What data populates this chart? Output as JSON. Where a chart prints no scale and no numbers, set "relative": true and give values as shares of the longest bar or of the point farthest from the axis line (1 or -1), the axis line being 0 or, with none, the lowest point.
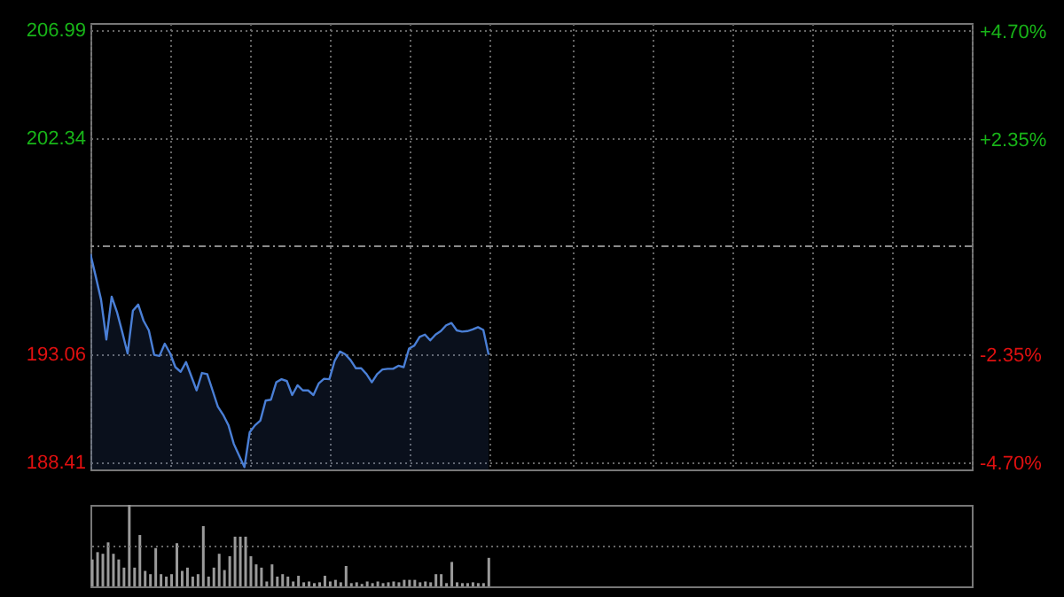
{
  "chart_data": [
    {
      "type": "area",
      "categories": [
        null,
        null,
        null,
        null,
        null,
        null,
        null,
        null,
        null,
        null,
        null,
        null,
        null,
        null,
        null,
        null,
        null,
        null,
        null,
        null,
        null,
        null,
        null,
        null,
        null,
        null,
        null,
        null,
        null,
        null,
        null,
        null,
        null,
        null,
        null,
        null,
        null,
        null,
        null,
        null,
        null,
        null,
        null,
        null,
        null,
        null,
        null,
        null,
        null,
        null,
        null,
        null,
        null,
        null,
        null,
        null,
        null,
        null,
        null,
        null,
        null,
        null,
        null,
        null,
        null,
        null,
        null,
        null,
        null,
        null,
        null,
        null,
        null,
        null,
        null,
        null,
        null,
        null,
        null,
        null,
        null,
        null,
        null,
        null,
        null,
        null,
        null,
        null,
        null,
        null,
        null,
        null,
        null,
        null,
        null,
        null,
        null,
        null,
        null,
        null,
        null,
        null,
        null,
        null,
        null,
        null,
        null,
        null,
        null,
        null,
        null,
        null,
        null,
        null,
        null,
        null,
        null,
        null,
        null,
        null,
        null,
        null,
        null,
        null,
        null,
        null,
        null,
        null,
        null,
        null,
        null,
        null,
        null,
        null,
        null,
        null,
        null,
        null,
        null,
        null,
        null,
        null,
        null,
        null,
        null,
        null,
        null,
        null,
        null,
        null,
        null,
        null,
        null,
        null,
        null,
        null,
        null,
        null,
        null,
        null,
        null,
        null,
        null,
        null,
        null,
        null,
        null
      ],
      "series": [
        {
          "color": "#4a7fd6",
          "values": [
            197.37,
            196.4,
            195.4,
            193.69,
            195.53,
            194.87,
            194.0,
            193.09,
            194.93,
            195.19,
            194.5,
            194.08,
            193.03,
            192.98,
            193.51,
            193.1,
            192.5,
            192.3,
            192.72,
            192.11,
            191.5,
            192.25,
            192.2,
            191.5,
            190.8,
            190.45,
            190.0,
            189.2,
            188.7,
            188.2,
            189.7,
            190.0,
            190.2,
            191.06,
            191.1,
            191.85,
            191.98,
            191.9,
            191.3,
            191.72,
            191.5,
            191.5,
            191.3,
            191.8,
            192.0,
            191.98,
            192.77,
            193.17,
            193.05,
            192.8,
            192.45,
            192.45,
            192.2,
            191.85,
            192.2,
            192.4,
            192.43,
            192.43,
            192.56,
            192.5,
            193.3,
            193.43,
            193.8,
            193.9,
            193.65,
            193.9,
            194.05,
            194.3,
            194.4,
            194.08,
            194.03,
            194.05,
            194.12,
            194.22,
            194.1,
            193.03,
            null,
            null,
            null,
            null,
            null,
            null,
            null,
            null,
            null,
            null,
            null,
            null,
            null,
            null,
            null,
            null,
            null,
            null,
            null,
            null,
            null,
            null,
            null,
            null,
            null,
            null,
            null,
            null,
            null,
            null,
            null,
            null,
            null,
            null,
            null,
            null,
            null,
            null,
            null,
            null,
            null,
            null,
            null,
            null,
            null,
            null,
            null,
            null,
            null,
            null,
            null,
            null,
            null,
            null,
            null,
            null,
            null,
            null,
            null,
            null,
            null,
            null,
            null,
            null,
            null,
            null,
            null,
            null,
            null,
            null,
            null,
            null,
            null,
            null,
            null,
            null,
            null,
            null,
            null,
            null,
            null,
            null,
            null,
            null,
            null,
            null,
            null,
            null,
            null,
            null,
            null
          ]
        }
      ],
      "ylim": [
        188.1,
        207.3
      ],
      "yticks": [
        188.41,
        193.06,
        202.34,
        206.99
      ],
      "y2lim": [
        -4.83,
        4.89
      ],
      "y2ticks": [
        {
          "value": -4.7,
          "label": "-4.70%"
        },
        {
          "value": -2.35,
          "label": "-2.35%"
        },
        {
          "value": 2.35,
          "label": "+2.35%"
        },
        {
          "value": 4.7,
          "label": "+4.70%"
        }
      ],
      "ref_lines": [
        {
          "axis": "y",
          "value": 197.7,
          "color": "#8a8a8a",
          "line_style": "dashed"
        }
      ],
      "grid": true
    },
    {
      "type": "bar",
      "relative": true,
      "color": "#9a9a9a",
      "ref_lines": [
        {
          "axis": "y",
          "value": 0.49,
          "color": "#666666",
          "line_style": "dotted"
        }
      ],
      "categories": [
        null,
        null,
        null,
        null,
        null,
        null,
        null,
        null,
        null,
        null,
        null,
        null,
        null,
        null,
        null,
        null,
        null,
        null,
        null,
        null,
        null,
        null,
        null,
        null,
        null,
        null,
        null,
        null,
        null,
        null,
        null,
        null,
        null,
        null,
        null,
        null,
        null,
        null,
        null,
        null,
        null,
        null,
        null,
        null,
        null,
        null,
        null,
        null,
        null,
        null,
        null,
        null,
        null,
        null,
        null,
        null,
        null,
        null,
        null,
        null,
        null,
        null,
        null,
        null,
        null,
        null,
        null,
        null,
        null,
        null,
        null,
        null,
        null,
        null,
        null,
        null,
        null,
        null,
        null,
        null,
        null,
        null,
        null,
        null,
        null,
        null,
        null,
        null,
        null,
        null,
        null,
        null,
        null,
        null,
        null,
        null,
        null,
        null,
        null,
        null,
        null,
        null,
        null,
        null,
        null,
        null,
        null,
        null,
        null,
        null,
        null,
        null,
        null,
        null,
        null,
        null,
        null,
        null,
        null,
        null,
        null,
        null,
        null,
        null,
        null,
        null,
        null,
        null,
        null,
        null,
        null,
        null,
        null,
        null,
        null,
        null,
        null,
        null,
        null,
        null,
        null,
        null,
        null,
        null,
        null,
        null,
        null,
        null,
        null,
        null,
        null,
        null,
        null,
        null,
        null,
        null,
        null,
        null,
        null,
        null,
        null,
        null,
        null,
        null,
        null,
        null,
        null
      ],
      "values": [
        0.33,
        0.42,
        0.4,
        0.54,
        0.4,
        0.33,
        0.23,
        1.0,
        0.23,
        0.63,
        0.19,
        0.15,
        0.47,
        0.15,
        0.12,
        0.15,
        0.53,
        0.19,
        0.23,
        0.12,
        0.15,
        0.74,
        0.12,
        0.23,
        0.4,
        0.2,
        0.37,
        0.61,
        0.61,
        0.61,
        0.37,
        0.27,
        0.23,
        0.06,
        0.27,
        0.12,
        0.15,
        0.12,
        0.06,
        0.13,
        0.05,
        0.06,
        0.04,
        0.05,
        0.13,
        0.06,
        0.08,
        0.05,
        0.25,
        0.04,
        0.05,
        0.03,
        0.06,
        0.04,
        0.06,
        0.04,
        0.05,
        0.06,
        0.05,
        0.08,
        0.08,
        0.08,
        0.05,
        0.06,
        0.05,
        0.15,
        0.15,
        0.04,
        0.3,
        0.05,
        0.04,
        0.04,
        0.05,
        0.04,
        0.04,
        0.35,
        null,
        null,
        null,
        null,
        null,
        null,
        null,
        null,
        null,
        null,
        null,
        null,
        null,
        null,
        null,
        null,
        null,
        null,
        null,
        null,
        null,
        null,
        null,
        null,
        null,
        null,
        null,
        null,
        null,
        null,
        null,
        null,
        null,
        null,
        null,
        null,
        null,
        null,
        null,
        null,
        null,
        null,
        null,
        null,
        null,
        null,
        null,
        null,
        null,
        null,
        null,
        null,
        null,
        null,
        null,
        null,
        null,
        null,
        null,
        null,
        null,
        null,
        null,
        null,
        null,
        null,
        null,
        null,
        null,
        null,
        null,
        null,
        null,
        null,
        null,
        null,
        null,
        null,
        null,
        null,
        null,
        null,
        null,
        null,
        null,
        null,
        null,
        null,
        null,
        null,
        null
      ]
    }
  ]
}
